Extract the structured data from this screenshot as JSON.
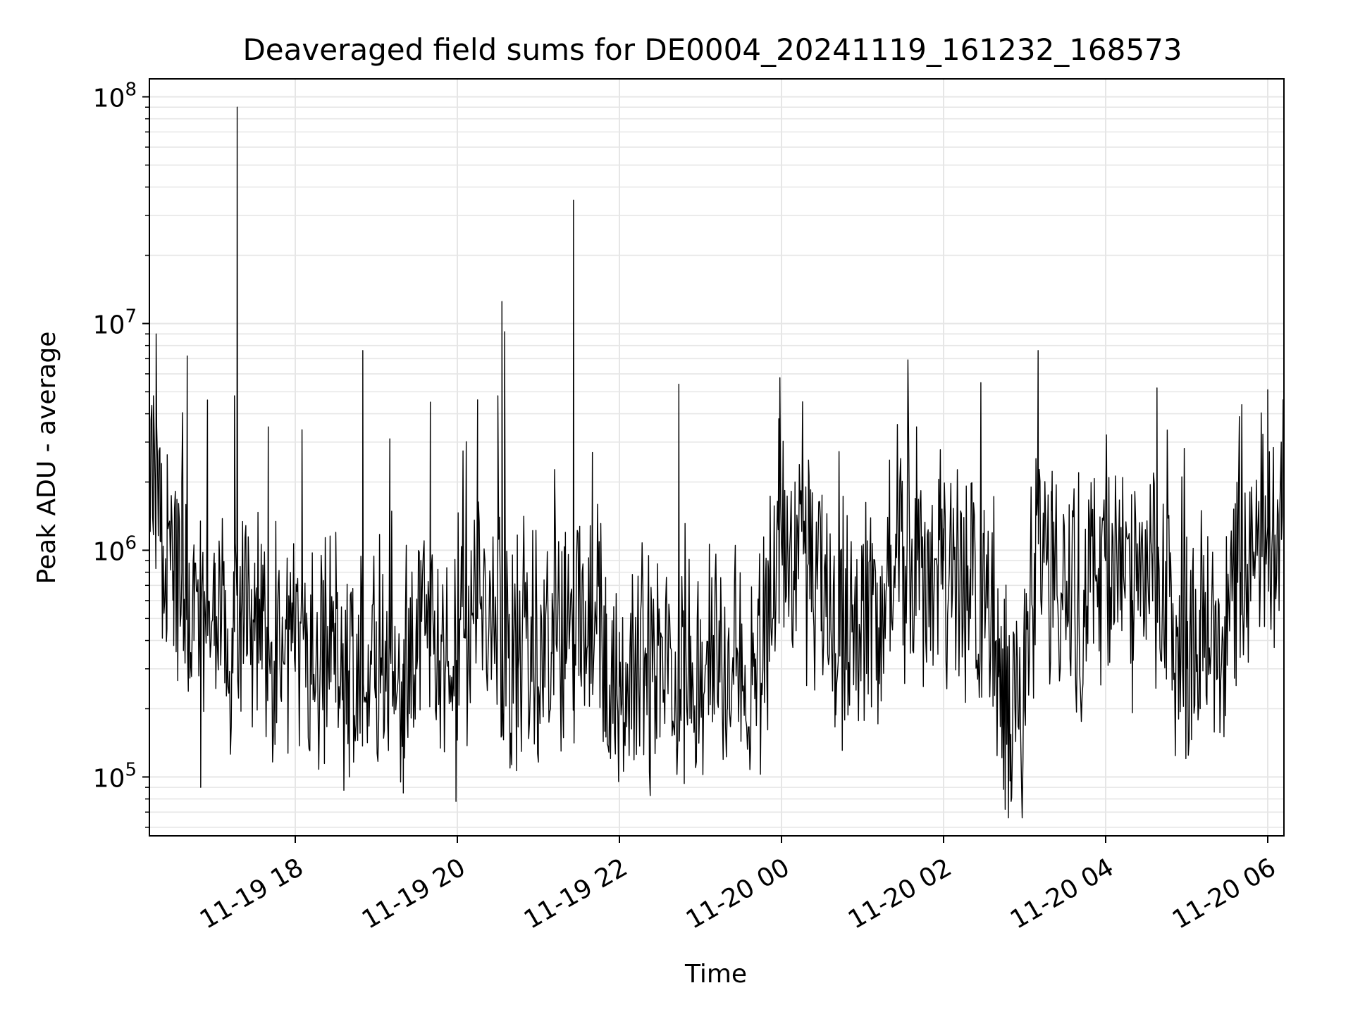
{
  "chart_data": {
    "type": "line",
    "title": "Deaveraged field sums for DE0004_20241119_161232_168573",
    "xlabel": "Time",
    "ylabel": "Peak ADU - average",
    "yscale": "log",
    "ylim": [
      55000,
      120000000
    ],
    "xlim": [
      "2024-11-19 16:12",
      "2024-11-20 06:12"
    ],
    "grid": true,
    "line_color": "#000000",
    "grid_color": "#e6e6e6",
    "x_ticks": [
      {
        "time": "2024-11-19 18:00",
        "label": "11-19 18"
      },
      {
        "time": "2024-11-19 20:00",
        "label": "11-19 20"
      },
      {
        "time": "2024-11-19 22:00",
        "label": "11-19 22"
      },
      {
        "time": "2024-11-20 00:00",
        "label": "11-20 00"
      },
      {
        "time": "2024-11-20 02:00",
        "label": "11-20 02"
      },
      {
        "time": "2024-11-20 04:00",
        "label": "11-20 04"
      },
      {
        "time": "2024-11-20 06:00",
        "label": "11-20 06"
      }
    ],
    "y_ticks": [
      {
        "value": 100000,
        "base": "10",
        "exp": "5"
      },
      {
        "value": 1000000,
        "base": "10",
        "exp": "6"
      },
      {
        "value": 10000000,
        "base": "10",
        "exp": "7"
      },
      {
        "value": 100000000,
        "base": "10",
        "exp": "8"
      }
    ],
    "series": [
      {
        "points": [
          [
            "2024-11-19 16:12",
            2500000
          ],
          [
            "2024-11-19 16:15",
            4800000
          ],
          [
            "2024-11-19 16:17",
            9000000
          ],
          [
            "2024-11-19 16:20",
            1100000
          ],
          [
            "2024-11-19 16:25",
            450000
          ],
          [
            "2024-11-19 16:30",
            380000
          ],
          [
            "2024-11-19 16:36",
            2000000
          ],
          [
            "2024-11-19 16:40",
            7200000
          ],
          [
            "2024-11-19 16:45",
            400000
          ],
          [
            "2024-11-19 16:50",
            90000
          ],
          [
            "2024-11-19 16:55",
            4600000
          ],
          [
            "2024-11-19 17:00",
            380000
          ],
          [
            "2024-11-19 17:10",
            450000
          ],
          [
            "2024-11-19 17:15",
            4800000
          ],
          [
            "2024-11-19 17:17",
            90000000
          ],
          [
            "2024-11-19 17:20",
            500000
          ],
          [
            "2024-11-19 17:30",
            400000
          ],
          [
            "2024-11-19 17:40",
            3500000
          ],
          [
            "2024-11-19 17:50",
            350000
          ],
          [
            "2024-11-19 18:00",
            300000
          ],
          [
            "2024-11-19 18:05",
            3400000
          ],
          [
            "2024-11-19 18:20",
            260000
          ],
          [
            "2024-11-19 18:30",
            1200000
          ],
          [
            "2024-11-19 18:40",
            100000
          ],
          [
            "2024-11-19 18:50",
            7600000
          ],
          [
            "2024-11-19 19:00",
            250000
          ],
          [
            "2024-11-19 19:10",
            3100000
          ],
          [
            "2024-11-19 19:20",
            85000
          ],
          [
            "2024-11-19 19:30",
            300000
          ],
          [
            "2024-11-19 19:40",
            4500000
          ],
          [
            "2024-11-19 19:50",
            350000
          ],
          [
            "2024-11-19 19:59",
            78000
          ],
          [
            "2024-11-19 20:05",
            450000
          ],
          [
            "2024-11-19 20:15",
            500000
          ],
          [
            "2024-11-19 20:30",
            4800000
          ],
          [
            "2024-11-19 20:33",
            12500000
          ],
          [
            "2024-11-19 20:35",
            9200000
          ],
          [
            "2024-11-19 20:45",
            300000
          ],
          [
            "2024-11-19 21:00",
            250000
          ],
          [
            "2024-11-19 21:10",
            350000
          ],
          [
            "2024-11-19 21:20",
            1200000
          ],
          [
            "2024-11-19 21:26",
            35000000
          ],
          [
            "2024-11-19 21:30",
            600000
          ],
          [
            "2024-11-19 21:40",
            2700000
          ],
          [
            "2024-11-19 21:50",
            150000
          ],
          [
            "2024-11-19 22:00",
            250000
          ],
          [
            "2024-11-19 22:20",
            350000
          ],
          [
            "2024-11-19 22:30",
            150000
          ],
          [
            "2024-11-19 22:44",
            5400000
          ],
          [
            "2024-11-19 23:00",
            300000
          ],
          [
            "2024-11-19 23:20",
            200000
          ],
          [
            "2024-11-19 23:40",
            350000
          ],
          [
            "2024-11-19 23:50",
            900000
          ],
          [
            "2024-11-19 23:58",
            3800000
          ],
          [
            "2024-11-20 00:10",
            2000000
          ],
          [
            "2024-11-20 00:20",
            2500000
          ],
          [
            "2024-11-20 00:30",
            500000
          ],
          [
            "2024-11-20 00:40",
            350000
          ],
          [
            "2024-11-20 01:00",
            600000
          ],
          [
            "2024-11-20 01:20",
            2500000
          ],
          [
            "2024-11-20 01:30",
            1000000
          ],
          [
            "2024-11-20 01:40",
            3500000
          ],
          [
            "2024-11-20 01:50",
            1200000
          ],
          [
            "2024-11-20 02:00",
            900000
          ],
          [
            "2024-11-20 02:20",
            500000
          ],
          [
            "2024-11-20 02:30",
            1500000
          ],
          [
            "2024-11-20 02:40",
            250000
          ],
          [
            "2024-11-20 02:50",
            78000
          ],
          [
            "2024-11-20 03:00",
            200000
          ],
          [
            "2024-11-20 03:10",
            7600000
          ],
          [
            "2024-11-20 03:20",
            1500000
          ],
          [
            "2024-11-20 03:30",
            600000
          ],
          [
            "2024-11-20 03:40",
            2200000
          ],
          [
            "2024-11-20 04:00",
            1500000
          ],
          [
            "2024-11-20 04:20",
            600000
          ],
          [
            "2024-11-20 04:30",
            700000
          ],
          [
            "2024-11-20 04:38",
            5200000
          ],
          [
            "2024-11-20 04:50",
            500000
          ],
          [
            "2024-11-20 05:00",
            300000
          ],
          [
            "2024-11-20 05:10",
            200000
          ],
          [
            "2024-11-20 05:20",
            500000
          ],
          [
            "2024-11-20 05:40",
            800000
          ],
          [
            "2024-11-20 06:00",
            5100000
          ],
          [
            "2024-11-20 06:10",
            3000000
          ]
        ],
        "baseline": [
          [
            "2024-11-19 16:12",
            2500000
          ],
          [
            "2024-11-19 16:30",
            700000
          ],
          [
            "2024-11-19 17:00",
            480000
          ],
          [
            "2024-11-19 17:30",
            420000
          ],
          [
            "2024-11-19 18:00",
            380000
          ],
          [
            "2024-11-19 18:30",
            330000
          ],
          [
            "2024-11-19 19:00",
            300000
          ],
          [
            "2024-11-19 19:30",
            380000
          ],
          [
            "2024-11-19 20:00",
            450000
          ],
          [
            "2024-11-19 20:30",
            480000
          ],
          [
            "2024-11-19 20:45",
            330000
          ],
          [
            "2024-11-19 21:15",
            350000
          ],
          [
            "2024-11-19 21:40",
            550000
          ],
          [
            "2024-11-19 21:50",
            280000
          ],
          [
            "2024-11-19 22:30",
            300000
          ],
          [
            "2024-11-19 23:00",
            320000
          ],
          [
            "2024-11-19 23:40",
            280000
          ],
          [
            "2024-11-19 23:55",
            800000
          ],
          [
            "2024-11-20 00:15",
            1000000
          ],
          [
            "2024-11-20 00:40",
            500000
          ],
          [
            "2024-11-20 01:10",
            480000
          ],
          [
            "2024-11-20 01:30",
            900000
          ],
          [
            "2024-11-20 02:00",
            750000
          ],
          [
            "2024-11-20 02:30",
            700000
          ],
          [
            "2024-11-20 02:40",
            230000
          ],
          [
            "2024-11-20 03:00",
            200000
          ],
          [
            "2024-11-20 03:10",
            1000000
          ],
          [
            "2024-11-20 03:40",
            600000
          ],
          [
            "2024-11-20 04:00",
            900000
          ],
          [
            "2024-11-20 04:20",
            600000
          ],
          [
            "2024-11-20 04:40",
            600000
          ],
          [
            "2024-11-20 05:00",
            380000
          ],
          [
            "2024-11-20 05:30",
            550000
          ],
          [
            "2024-11-20 06:00",
            1300000
          ],
          [
            "2024-11-20 06:12",
            1700000
          ]
        ],
        "noise_seed": 17
      }
    ]
  }
}
